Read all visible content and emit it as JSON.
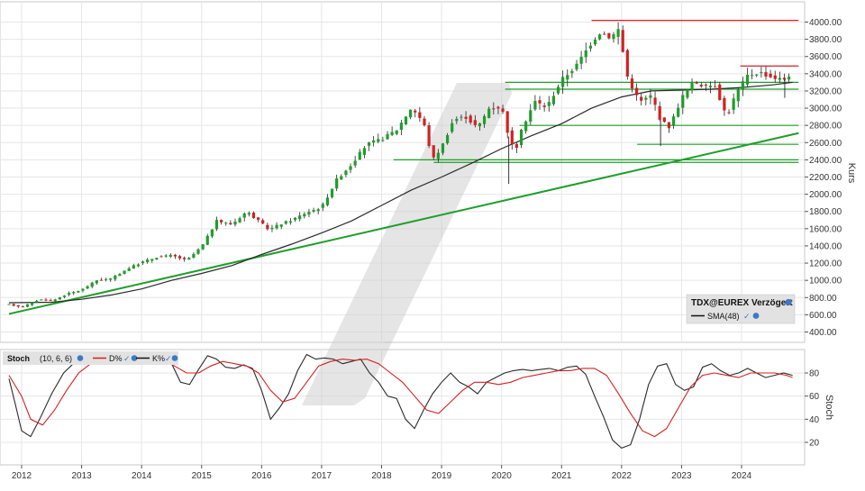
{
  "chart_data": [
    {
      "type": "line",
      "title": "TDX@EUREX Verzögert",
      "subtitle": "",
      "xlabel": "",
      "ylabel": "Kurs",
      "ylim": [
        300,
        4100
      ],
      "xlim": [
        2011.78,
        2024.95
      ],
      "yticks": [
        400,
        600,
        800,
        1000,
        1200,
        1400,
        1600,
        1800,
        2000,
        2200,
        2400,
        2600,
        2800,
        3000,
        3200,
        3400,
        3600,
        3800,
        4000
      ],
      "ytick_labels": [
        "400.00",
        "600.00",
        "800.00",
        "1000.00",
        "1200.00",
        "1400.00",
        "1600.00",
        "1800.00",
        "2000.00",
        "2200.00",
        "2400.00",
        "2600.00",
        "2800.00",
        "3000.00",
        "3200.00",
        "3400.00",
        "3600.00",
        "3800.00",
        "4000.00"
      ],
      "xticks": [
        2012,
        2013,
        2014,
        2015,
        2016,
        2017,
        2018,
        2019,
        2020,
        2021,
        2022,
        2023,
        2024
      ],
      "xtick_labels": [
        "2012",
        "2013",
        "2014",
        "2015",
        "2016",
        "2017",
        "2018",
        "2019",
        "2020",
        "2021",
        "2022",
        "2023",
        "2024"
      ],
      "grid": true,
      "legend": {
        "position": "bottom-right",
        "title": "TDX@EUREX Verzögert",
        "entries": [
          "SMA(48)"
        ]
      },
      "colors": {
        "up": "#1e9e2a",
        "down": "#d42020",
        "sma": "#2a2a2a",
        "trend": "#1e9e2a",
        "resistance": "#d42020"
      },
      "series": [
        {
          "name": "Kurs",
          "x": [
            2011.79,
            2012.0,
            2012.3,
            2012.5,
            2012.75,
            2013.0,
            2013.25,
            2013.5,
            2013.75,
            2014.0,
            2014.25,
            2014.5,
            2014.75,
            2015.0,
            2015.25,
            2015.5,
            2015.75,
            2016.0,
            2016.12,
            2016.3,
            2016.5,
            2016.75,
            2017.0,
            2017.25,
            2017.5,
            2017.75,
            2018.0,
            2018.25,
            2018.5,
            2018.7,
            2018.85,
            2019.0,
            2019.2,
            2019.4,
            2019.6,
            2019.8,
            2020.0,
            2020.12,
            2020.22,
            2020.35,
            2020.55,
            2020.75,
            2021.0,
            2021.25,
            2021.5,
            2021.65,
            2021.82,
            2021.95,
            2022.1,
            2022.3,
            2022.5,
            2022.65,
            2022.8,
            2023.0,
            2023.2,
            2023.4,
            2023.55,
            2023.75,
            2023.9,
            2024.1,
            2024.3,
            2024.5,
            2024.7,
            2024.85
          ],
          "y": [
            720,
            690,
            780,
            760,
            840,
            890,
            1000,
            1020,
            1130,
            1210,
            1270,
            1290,
            1230,
            1390,
            1690,
            1650,
            1800,
            1660,
            1590,
            1650,
            1700,
            1790,
            1850,
            2170,
            2350,
            2580,
            2640,
            2750,
            3010,
            2830,
            2400,
            2550,
            2870,
            2900,
            2770,
            3010,
            3010,
            2670,
            2480,
            2780,
            3080,
            3010,
            3330,
            3500,
            3770,
            3890,
            3820,
            3920,
            3360,
            3070,
            3150,
            2860,
            2780,
            3120,
            3310,
            3250,
            3280,
            2900,
            3160,
            3380,
            3420,
            3360,
            3330,
            3420
          ]
        },
        {
          "name": "SMA(48)",
          "x": [
            2011.79,
            2012.5,
            2013.0,
            2013.5,
            2014.0,
            2014.5,
            2015.0,
            2015.5,
            2016.0,
            2016.5,
            2017.0,
            2017.5,
            2018.0,
            2018.5,
            2019.0,
            2019.5,
            2020.0,
            2020.5,
            2021.0,
            2021.5,
            2022.0,
            2022.5,
            2023.0,
            2023.5,
            2024.0,
            2024.5,
            2024.85
          ],
          "y": [
            740,
            745,
            780,
            830,
            900,
            1000,
            1080,
            1170,
            1300,
            1420,
            1550,
            1690,
            1870,
            2050,
            2200,
            2360,
            2530,
            2680,
            2820,
            3000,
            3130,
            3200,
            3210,
            3220,
            3240,
            3270,
            3300
          ]
        }
      ],
      "trendlines": [
        {
          "name": "long-term-trend",
          "x": [
            2011.79,
            2024.95
          ],
          "y": [
            610,
            2710
          ]
        }
      ],
      "horizontal_levels": [
        {
          "name": "resistance-ath",
          "y": 4020,
          "x_from": 2021.5,
          "x_to": 2024.95,
          "color": "red"
        },
        {
          "name": "resistance-recent",
          "y": 3490,
          "x_from": 2023.98,
          "x_to": 2024.95,
          "color": "red"
        },
        {
          "name": "support-3300",
          "y": 3300,
          "x_from": 2020.06,
          "x_to": 2024.95,
          "color": "green"
        },
        {
          "name": "support-3220",
          "y": 3220,
          "x_from": 2020.06,
          "x_to": 2024.95,
          "color": "green"
        },
        {
          "name": "support-2800",
          "y": 2800,
          "x_from": 2020.3,
          "x_to": 2024.95,
          "color": "green"
        },
        {
          "name": "support-2580",
          "y": 2580,
          "x_from": 2022.26,
          "x_to": 2024.95,
          "color": "green"
        },
        {
          "name": "support-2400",
          "y": 2400,
          "x_from": 2018.2,
          "x_to": 2024.95,
          "color": "green"
        },
        {
          "name": "support-2370",
          "y": 2370,
          "x_from": 2018.87,
          "x_to": 2024.95,
          "color": "green"
        }
      ]
    },
    {
      "type": "line",
      "title": "Stoch",
      "params": "(10, 6, 6)",
      "ylabel": "Stoch",
      "ylim": [
        0,
        100
      ],
      "yticks": [
        20,
        40,
        60,
        80
      ],
      "ytick_labels": [
        "20",
        "40",
        "60",
        "80"
      ],
      "legend": {
        "position": "top-left",
        "entries": [
          "D%",
          "K%"
        ]
      },
      "series": [
        {
          "name": "K%",
          "color": "#2a2a2a",
          "x": [
            2011.79,
            2011.9,
            2012.0,
            2012.15,
            2012.3,
            2012.5,
            2012.7,
            2012.9,
            2013.1,
            2013.3,
            2013.5,
            2013.7,
            2013.9,
            2014.05,
            2014.2,
            2014.35,
            2014.5,
            2014.65,
            2014.8,
            2014.95,
            2015.1,
            2015.25,
            2015.4,
            2015.55,
            2015.7,
            2015.85,
            2016.0,
            2016.15,
            2016.3,
            2016.45,
            2016.6,
            2016.75,
            2016.9,
            2017.05,
            2017.2,
            2017.35,
            2017.5,
            2017.65,
            2017.8,
            2017.95,
            2018.1,
            2018.25,
            2018.4,
            2018.55,
            2018.7,
            2018.85,
            2019.0,
            2019.15,
            2019.3,
            2019.45,
            2019.6,
            2019.75,
            2019.9,
            2020.05,
            2020.2,
            2020.35,
            2020.5,
            2020.65,
            2020.8,
            2020.95,
            2021.1,
            2021.25,
            2021.4,
            2021.55,
            2021.7,
            2021.85,
            2022.0,
            2022.15,
            2022.3,
            2022.45,
            2022.6,
            2022.75,
            2022.9,
            2023.05,
            2023.2,
            2023.35,
            2023.5,
            2023.65,
            2023.8,
            2023.95,
            2024.1,
            2024.25,
            2024.4,
            2024.55,
            2024.7,
            2024.85
          ],
          "y": [
            75,
            52,
            30,
            25,
            40,
            62,
            80,
            90,
            94,
            92,
            90,
            93,
            97,
            96,
            94,
            92,
            88,
            72,
            70,
            83,
            95,
            92,
            85,
            84,
            87,
            84,
            65,
            40,
            50,
            62,
            82,
            96,
            92,
            93,
            92,
            88,
            90,
            92,
            80,
            72,
            60,
            58,
            40,
            32,
            48,
            62,
            72,
            80,
            72,
            68,
            62,
            72,
            76,
            80,
            82,
            83,
            82,
            83,
            84,
            82,
            85,
            86,
            79,
            60,
            42,
            22,
            15,
            18,
            40,
            70,
            86,
            88,
            70,
            65,
            68,
            85,
            88,
            82,
            78,
            80,
            84,
            80,
            76,
            78,
            80,
            78
          ]
        },
        {
          "name": "D%",
          "color": "#d42020",
          "x": [
            2011.79,
            2012.0,
            2012.15,
            2012.35,
            2012.55,
            2012.75,
            2012.95,
            2013.15,
            2013.35,
            2013.55,
            2013.75,
            2013.95,
            2014.15,
            2014.35,
            2014.55,
            2014.75,
            2014.95,
            2015.15,
            2015.35,
            2015.55,
            2015.75,
            2015.95,
            2016.15,
            2016.35,
            2016.55,
            2016.75,
            2016.95,
            2017.15,
            2017.35,
            2017.55,
            2017.75,
            2017.95,
            2018.15,
            2018.35,
            2018.55,
            2018.75,
            2018.95,
            2019.15,
            2019.35,
            2019.55,
            2019.75,
            2019.95,
            2020.15,
            2020.35,
            2020.55,
            2020.75,
            2020.95,
            2021.15,
            2021.35,
            2021.55,
            2021.75,
            2021.95,
            2022.15,
            2022.35,
            2022.55,
            2022.75,
            2022.95,
            2023.15,
            2023.35,
            2023.55,
            2023.75,
            2023.95,
            2024.15,
            2024.35,
            2024.55,
            2024.75,
            2024.85
          ],
          "y": [
            78,
            60,
            40,
            35,
            48,
            65,
            80,
            88,
            92,
            92,
            93,
            95,
            94,
            92,
            86,
            80,
            80,
            86,
            90,
            88,
            86,
            80,
            65,
            55,
            58,
            72,
            86,
            90,
            92,
            91,
            92,
            88,
            80,
            72,
            60,
            48,
            45,
            55,
            65,
            72,
            72,
            70,
            72,
            76,
            78,
            80,
            82,
            82,
            84,
            84,
            78,
            62,
            45,
            30,
            25,
            32,
            50,
            68,
            78,
            80,
            78,
            76,
            80,
            80,
            80,
            78,
            76
          ]
        }
      ]
    }
  ]
}
